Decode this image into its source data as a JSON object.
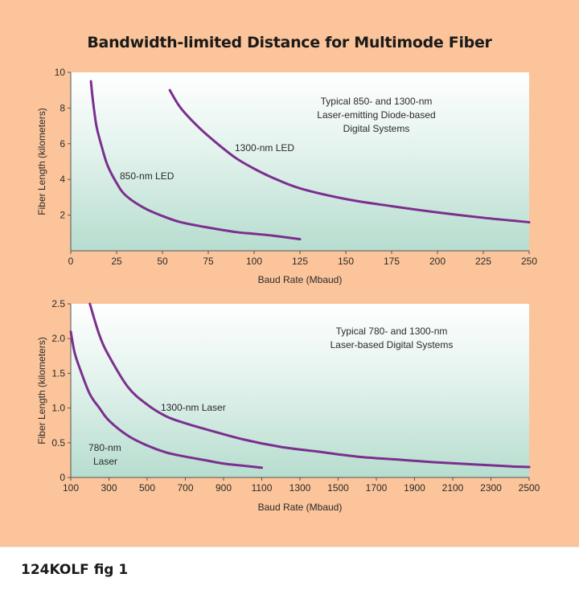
{
  "figure": {
    "title": "Bandwidth-limited Distance for Multimode Fiber",
    "caption": "124KOLF fig 1"
  },
  "chart_data": [
    {
      "type": "line",
      "xlabel": "Baud Rate (Mbaud)",
      "ylabel": "Fiber Length (kilometers)",
      "xlim": [
        0,
        250
      ],
      "ylim": [
        0,
        10
      ],
      "xticks": [
        "0",
        "25",
        "50",
        "75",
        "100",
        "125",
        "150",
        "175",
        "200",
        "225",
        "250"
      ],
      "yticks": [
        "2",
        "4",
        "6",
        "8",
        "10"
      ],
      "annotation": [
        "Typical 850- and 1300-nm",
        "Laser-emitting Diode-based",
        "Digital Systems"
      ],
      "series": [
        {
          "name": "850-nm LED",
          "color": "#7b2f8e",
          "x": [
            11,
            12,
            14,
            17,
            20,
            25,
            30,
            40,
            50,
            60,
            75,
            90,
            100,
            110,
            125
          ],
          "y": [
            9.5,
            8.5,
            7.0,
            5.8,
            4.8,
            3.8,
            3.1,
            2.4,
            1.95,
            1.6,
            1.3,
            1.05,
            0.95,
            0.85,
            0.65
          ]
        },
        {
          "name": "1300-nm LED",
          "color": "#7b2f8e",
          "x": [
            54,
            60,
            70,
            80,
            90,
            100,
            110,
            125,
            150,
            175,
            200,
            225,
            250
          ],
          "y": [
            9.0,
            8.0,
            6.9,
            6.0,
            5.2,
            4.6,
            4.1,
            3.5,
            2.9,
            2.5,
            2.15,
            1.85,
            1.6
          ]
        }
      ],
      "series_labels": [
        "850-nm LED",
        "1300-nm LED"
      ]
    },
    {
      "type": "line",
      "xlabel": "Baud Rate (Mbaud)",
      "ylabel": "Fiber Length (kilometers)",
      "xlim": [
        100,
        2500
      ],
      "ylim": [
        0,
        2.5
      ],
      "xticks": [
        "100",
        "300",
        "500",
        "700",
        "900",
        "1100",
        "1300",
        "1500",
        "1700",
        "1900",
        "2100",
        "2300",
        "2500"
      ],
      "yticks": [
        "0",
        "0.5",
        "1.0",
        "1.5",
        "2.0",
        "2.5"
      ],
      "annotation": [
        "Typical 780- and 1300-nm",
        "Laser-based Digital Systems"
      ],
      "series": [
        {
          "name": "780-nm Laser",
          "color": "#7b2f8e",
          "x": [
            100,
            120,
            150,
            200,
            250,
            300,
            400,
            500,
            600,
            700,
            800,
            900,
            1000,
            1100
          ],
          "y": [
            2.1,
            1.8,
            1.55,
            1.2,
            1.0,
            0.82,
            0.6,
            0.46,
            0.36,
            0.3,
            0.25,
            0.2,
            0.17,
            0.14
          ]
        },
        {
          "name": "1300-nm Laser",
          "color": "#7b2f8e",
          "x": [
            200,
            250,
            300,
            400,
            500,
            600,
            700,
            800,
            1000,
            1200,
            1400,
            1600,
            1800,
            2000,
            2200,
            2400,
            2500
          ],
          "y": [
            2.5,
            2.05,
            1.75,
            1.3,
            1.05,
            0.88,
            0.78,
            0.7,
            0.55,
            0.44,
            0.37,
            0.3,
            0.26,
            0.22,
            0.19,
            0.16,
            0.15
          ]
        }
      ],
      "series_labels": [
        "1300-nm Laser",
        "780-nm",
        "Laser"
      ]
    }
  ]
}
